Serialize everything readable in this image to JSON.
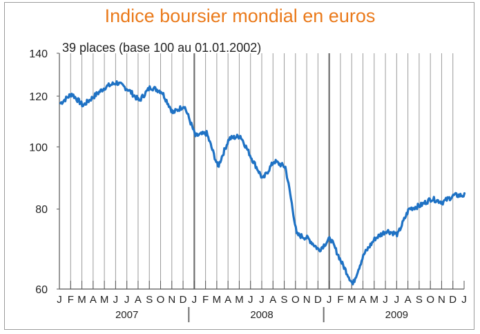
{
  "chart_data": {
    "type": "line",
    "title": "Indice boursier mondial en euros",
    "subtitle": "39 places (base 100 au 01.01.2002)",
    "xlabel": "",
    "ylabel": "",
    "y_scale": "log",
    "ylim": [
      60,
      140
    ],
    "y_ticks": [
      60,
      80,
      100,
      120,
      140
    ],
    "grid": "vertical",
    "legend": "none",
    "line_color": "#1f72c4",
    "title_color": "#ea7a1b",
    "month_labels": [
      "J",
      "F",
      "M",
      "A",
      "M",
      "J",
      "J",
      "A",
      "S",
      "O",
      "N",
      "D",
      "J",
      "F",
      "M",
      "A",
      "M",
      "J",
      "J",
      "A",
      "S",
      "O",
      "N",
      "D",
      "J",
      "F",
      "M",
      "A",
      "M",
      "J",
      "J",
      "A",
      "S",
      "O",
      "N",
      "D",
      "J"
    ],
    "years": [
      "2007",
      "2008",
      "2009"
    ],
    "x_unit": "month",
    "x": [
      "2007-01",
      "2007-02",
      "2007-03",
      "2007-04",
      "2007-05",
      "2007-06",
      "2007-07",
      "2007-08",
      "2007-09",
      "2007-10",
      "2007-11",
      "2007-12",
      "2008-01",
      "2008-02",
      "2008-03",
      "2008-04",
      "2008-05",
      "2008-06",
      "2008-07",
      "2008-08",
      "2008-09",
      "2008-10",
      "2008-11",
      "2008-12",
      "2009-01",
      "2009-02",
      "2009-03",
      "2009-04",
      "2009-05",
      "2009-06",
      "2009-07",
      "2009-08",
      "2009-09",
      "2009-10",
      "2009-11",
      "2009-12"
    ],
    "values": [
      117,
      121,
      116,
      120,
      124,
      126,
      123,
      118,
      124,
      122,
      113,
      116,
      104,
      105,
      93,
      103,
      104,
      96,
      89,
      95,
      93,
      73,
      72,
      69,
      72,
      66,
      61,
      68,
      72,
      74,
      73,
      80,
      81,
      83,
      82,
      84
    ]
  }
}
